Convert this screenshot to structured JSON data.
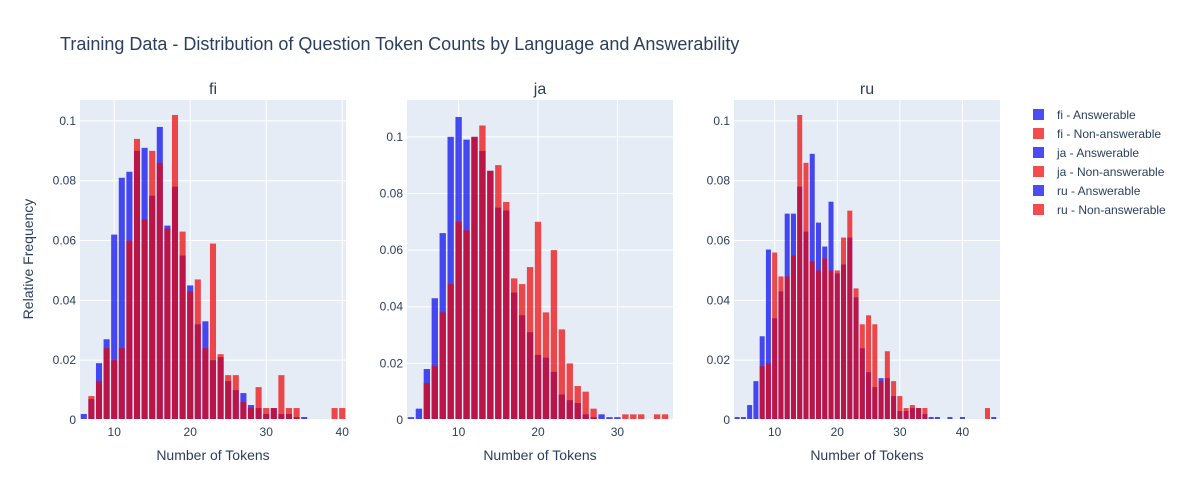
{
  "title": "Training Data - Distribution of Question Token Counts by Language and Answerability",
  "colors": {
    "answerable": "#0000ee",
    "non_answerable": "#ee0000",
    "panel_bg": "#e5ecf6"
  },
  "chart_data": [
    {
      "type": "bar",
      "title": "fi",
      "xlabel": "Number of Tokens",
      "ylabel": "Relative Frequency",
      "xlim": [
        5.5,
        40.5
      ],
      "ylim": [
        0,
        0.107
      ],
      "xticks": [
        10,
        20,
        30,
        40
      ],
      "yticks": [
        0,
        0.02,
        0.04,
        0.06,
        0.08,
        0.1
      ],
      "series": [
        {
          "name": "fi - Answerable",
          "x": [
            6,
            7,
            8,
            9,
            10,
            11,
            12,
            13,
            14,
            15,
            16,
            17,
            18,
            19,
            20,
            21,
            22,
            23,
            24,
            25,
            26,
            27,
            28,
            29,
            30,
            31,
            32,
            33,
            34,
            35
          ],
          "values": [
            0.002,
            0.007,
            0.019,
            0.027,
            0.062,
            0.081,
            0.083,
            0.09,
            0.091,
            0.075,
            0.098,
            0.065,
            0.078,
            0.055,
            0.045,
            0.032,
            0.033,
            0.02,
            0.021,
            0.013,
            0.01,
            0.009,
            0.005,
            0.004,
            0.002,
            0.004,
            0.002,
            0.002,
            0.001,
            0.001
          ]
        },
        {
          "name": "fi - Non-answerable",
          "x": [
            7,
            8,
            9,
            10,
            11,
            12,
            13,
            14,
            15,
            16,
            17,
            18,
            19,
            20,
            21,
            22,
            23,
            24,
            25,
            26,
            27,
            28,
            29,
            30,
            31,
            32,
            33,
            34,
            35,
            36,
            37,
            38,
            39,
            40
          ],
          "values": [
            0.008,
            0.013,
            0.024,
            0.02,
            0.024,
            0.06,
            0.094,
            0.067,
            0.09,
            0.086,
            0.064,
            0.102,
            0.063,
            0.043,
            0.047,
            0.024,
            0.059,
            0.022,
            0.015,
            0.015,
            0.006,
            0.004,
            0.011,
            0.004,
            0.004,
            0.015,
            0.004,
            0.004,
            0,
            0,
            0,
            0,
            0.004,
            0.004
          ]
        }
      ]
    },
    {
      "type": "bar",
      "title": "ja",
      "xlabel": "Number of Tokens",
      "ylim": [
        0,
        0.113
      ],
      "xlim": [
        3.5,
        37
      ],
      "xticks": [
        10,
        20,
        30
      ],
      "yticks": [
        0,
        0.02,
        0.04,
        0.06,
        0.08,
        0.1
      ],
      "series": [
        {
          "name": "ja - Answerable",
          "x": [
            4,
            5,
            6,
            7,
            8,
            9,
            10,
            11,
            12,
            13,
            14,
            15,
            16,
            17,
            18,
            19,
            20,
            21,
            22,
            23,
            24,
            25,
            26,
            27,
            28,
            29,
            30
          ],
          "values": [
            0.001,
            0.004,
            0.018,
            0.043,
            0.066,
            0.1,
            0.107,
            0.099,
            0.1,
            0.095,
            0.088,
            0.075,
            0.074,
            0.045,
            0.037,
            0.031,
            0.023,
            0.022,
            0.017,
            0.009,
            0.007,
            0.006,
            0.002,
            0.001,
            0.002,
            0.001,
            0.001
          ]
        },
        {
          "name": "ja - Non-answerable",
          "x": [
            5,
            6,
            7,
            8,
            9,
            10,
            11,
            12,
            13,
            14,
            15,
            16,
            17,
            18,
            19,
            20,
            21,
            22,
            23,
            24,
            25,
            26,
            27,
            28,
            29,
            30,
            31,
            32,
            33,
            34,
            35,
            36
          ],
          "values": [
            0,
            0.013,
            0.019,
            0.038,
            0.048,
            0.07,
            0.067,
            0.1,
            0.104,
            0.088,
            0.09,
            0.077,
            0.05,
            0.048,
            0.054,
            0.07,
            0.038,
            0.06,
            0.032,
            0.02,
            0.012,
            0.01,
            0.004,
            0,
            0,
            0,
            0.002,
            0.002,
            0.002,
            0,
            0.002,
            0.002
          ]
        }
      ]
    },
    {
      "type": "bar",
      "title": "ru",
      "xlabel": "Number of Tokens",
      "ylim": [
        0,
        0.107
      ],
      "xlim": [
        3.5,
        46
      ],
      "xticks": [
        10,
        20,
        30,
        40
      ],
      "yticks": [
        0,
        0.02,
        0.04,
        0.06,
        0.08,
        0.1
      ],
      "series": [
        {
          "name": "ru - Answerable",
          "x": [
            4,
            5,
            6,
            7,
            8,
            9,
            10,
            11,
            12,
            13,
            14,
            15,
            16,
            17,
            18,
            19,
            20,
            21,
            22,
            23,
            24,
            25,
            26,
            27,
            28,
            29,
            30,
            31,
            32,
            33,
            34,
            35,
            36,
            37,
            38,
            39,
            40,
            41,
            42,
            43,
            44,
            45
          ],
          "values": [
            0.001,
            0.001,
            0.005,
            0.013,
            0.028,
            0.057,
            0.034,
            0.043,
            0.069,
            0.069,
            0.078,
            0.063,
            0.089,
            0.066,
            0.058,
            0.073,
            0.049,
            0.052,
            0.061,
            0.041,
            0.024,
            0.016,
            0.011,
            0.014,
            0.014,
            0.008,
            0.003,
            0.003,
            0.004,
            0.004,
            0.002,
            0.001,
            0.001,
            0,
            0.001,
            0,
            0.001,
            0,
            0,
            0,
            0,
            0.001
          ]
        },
        {
          "name": "ru - Non-answerable",
          "x": [
            8,
            9,
            10,
            11,
            12,
            13,
            14,
            15,
            16,
            17,
            18,
            19,
            20,
            21,
            22,
            23,
            24,
            25,
            26,
            27,
            28,
            29,
            30,
            31,
            32,
            33,
            34,
            35,
            36,
            37,
            38,
            39,
            40,
            41,
            42,
            43,
            44
          ],
          "values": [
            0.018,
            0.019,
            0.056,
            0.048,
            0.048,
            0.055,
            0.102,
            0.086,
            0.053,
            0.05,
            0.054,
            0.05,
            0.05,
            0.061,
            0.07,
            0.044,
            0.032,
            0.035,
            0.032,
            0.013,
            0.023,
            0.013,
            0.008,
            0.004,
            0.005,
            0.004,
            0.004,
            0,
            0,
            0,
            0,
            0,
            0,
            0,
            0,
            0,
            0.004
          ]
        }
      ]
    }
  ],
  "legend": [
    {
      "label": "fi - Answerable",
      "kind": "answerable"
    },
    {
      "label": "fi - Non-answerable",
      "kind": "non_answerable"
    },
    {
      "label": "ja - Answerable",
      "kind": "answerable"
    },
    {
      "label": "ja - Non-answerable",
      "kind": "non_answerable"
    },
    {
      "label": "ru - Answerable",
      "kind": "answerable"
    },
    {
      "label": "ru - Non-answerable",
      "kind": "non_answerable"
    }
  ]
}
